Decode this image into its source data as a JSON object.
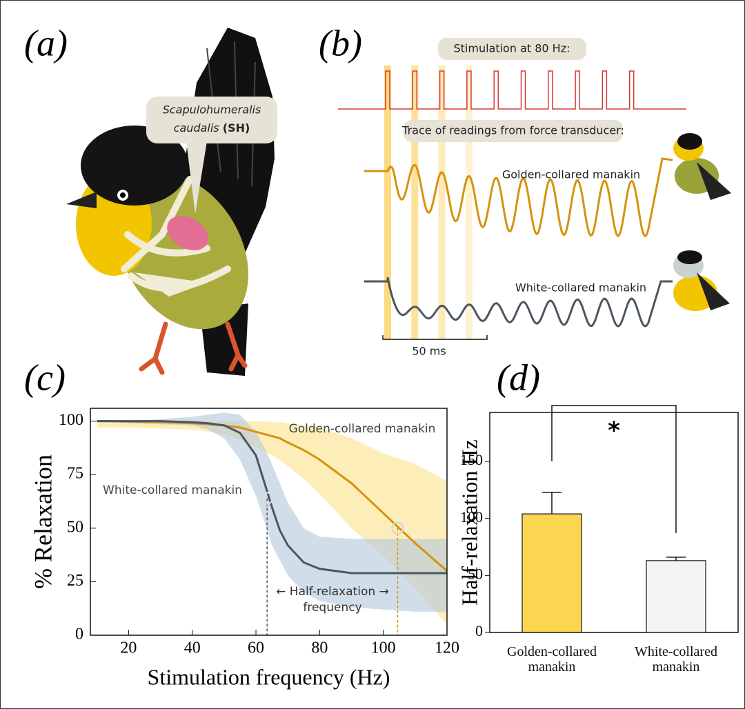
{
  "panel_labels": [
    "(a)",
    "(b)",
    "(c)",
    "(d)"
  ],
  "illustration": {
    "muscle_name_lines": [
      "Scapulohumeralis",
      "caudalis"
    ],
    "muscle_abbrev": "(SH)"
  },
  "traces": {
    "stimulation_label": "Stimulation at 80 Hz:",
    "force_label": "Trace of readings from force transducer:",
    "golden_label": "Golden-collared manakin",
    "white_label": "White-collared manakin",
    "scale_bar": "50 ms"
  },
  "chart_data": [
    {
      "type": "line",
      "xlabel": "Stimulation frequency (Hz)",
      "ylabel": "% Relaxation",
      "x": [
        10,
        20,
        30,
        40,
        45,
        50,
        55,
        60,
        62.5,
        65,
        67.5,
        70,
        75,
        80,
        90,
        100,
        110,
        120
      ],
      "xlim": [
        8,
        120
      ],
      "xticks": [
        20,
        40,
        60,
        80,
        100,
        120
      ],
      "ylim": [
        0,
        106
      ],
      "yticks": [
        0,
        25,
        50,
        75,
        100
      ],
      "series": [
        {
          "name": "Golden-collared manakin",
          "color": "#d4930d",
          "band_color": "#fbe38a",
          "values": [
            100,
            99.8,
            99.5,
            99,
            98.6,
            98,
            97,
            95,
            94,
            93,
            92,
            90,
            86.5,
            82,
            71,
            57,
            43,
            30
          ],
          "upper": [
            100,
            100,
            100,
            100,
            100,
            100,
            100,
            100,
            100,
            99.5,
            99.5,
            99,
            98,
            97,
            92,
            85,
            80,
            72
          ],
          "lower": [
            97,
            97,
            96.5,
            96,
            95,
            94,
            91,
            88,
            86,
            84,
            82,
            79,
            73,
            66,
            50,
            37,
            22,
            5
          ],
          "half_x": 104.5,
          "half_y": 50
        },
        {
          "name": "White-collared manakin",
          "color": "#4b5661",
          "band_color": "#b4c6dc",
          "values": [
            100,
            100,
            100,
            99.5,
            99,
            98,
            94.5,
            84,
            72,
            60,
            49,
            42,
            34,
            31,
            29,
            29,
            29,
            29
          ],
          "upper": [
            100,
            100,
            101,
            102,
            103,
            104,
            103,
            95,
            88,
            80,
            71,
            62,
            50,
            46,
            45,
            45,
            45,
            45
          ],
          "lower": [
            100,
            99,
            98.5,
            98,
            96,
            92,
            82,
            65,
            54,
            42,
            35,
            28,
            20,
            16,
            13,
            12,
            11,
            11
          ],
          "half_x": 63.5,
          "half_y": 64
        }
      ],
      "annotation": [
        "← Half-relaxation →",
        "frequency"
      ]
    },
    {
      "type": "bar",
      "ylabel": "Half-relaxation Hz",
      "categories": [
        "Golden-collared manakin",
        "White-collared manakin"
      ],
      "values": [
        104,
        63
      ],
      "errors": [
        19,
        3
      ],
      "colors": [
        "#fdd651",
        "#f4f4f4"
      ],
      "ylim": [
        0,
        193
      ],
      "yticks": [
        0,
        50,
        100,
        150
      ],
      "significance": "*"
    }
  ]
}
